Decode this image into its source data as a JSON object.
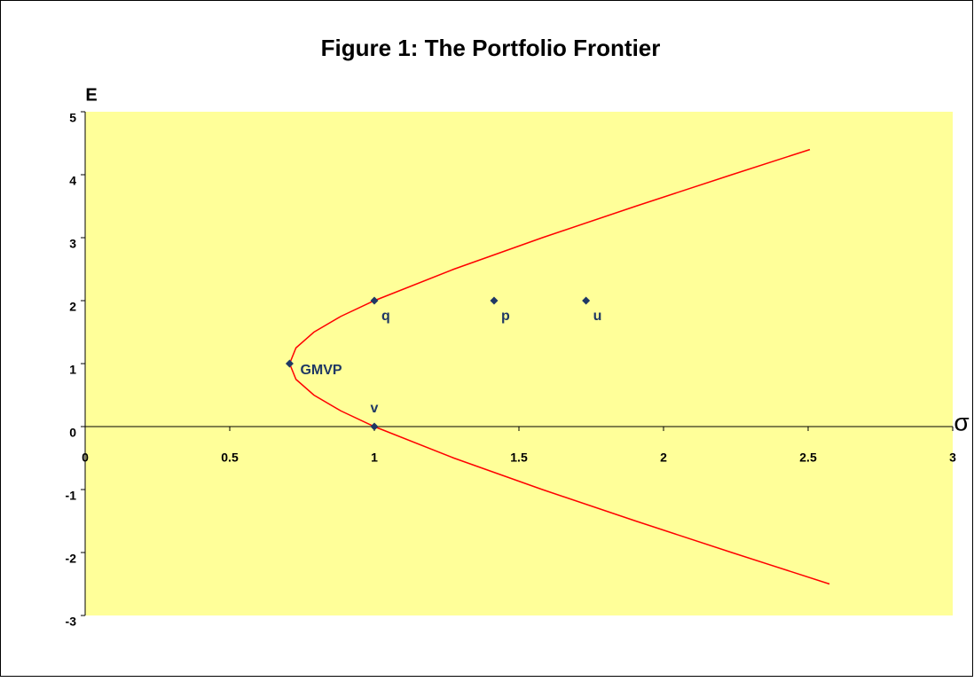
{
  "chart_data": {
    "type": "scatter",
    "title": "Figure 1:  The Portfolio Frontier",
    "y_label": "E",
    "x_label": "σ",
    "xlim": [
      0,
      3
    ],
    "ylim": [
      -3,
      5
    ],
    "xticks": [
      0,
      0.5,
      1,
      1.5,
      2,
      2.5,
      3
    ],
    "yticks": [
      -3,
      -2,
      -1,
      0,
      1,
      2,
      3,
      4,
      5
    ],
    "background": "#ffff99",
    "series": [
      {
        "type": "line",
        "color": "#ff0000",
        "x": [
          2.574,
          2.236,
          1.904,
          1.581,
          1.275,
          1.0,
          0.884,
          0.791,
          0.729,
          0.707,
          0.729,
          0.791,
          0.884,
          1.0,
          1.275,
          1.581,
          1.904,
          2.236,
          2.506
        ],
        "values": [
          -2.5,
          -2,
          -1.5,
          -1,
          -0.5,
          0,
          0.25,
          0.5,
          0.75,
          1,
          1.25,
          1.5,
          1.75,
          2,
          2.5,
          3,
          3.5,
          4,
          4.4
        ]
      },
      {
        "type": "scatter",
        "color": "#1f3864",
        "labels": [
          "GMVP",
          "q",
          "p",
          "u",
          "v"
        ],
        "x": [
          0.707,
          1,
          1.414,
          1.732,
          1
        ],
        "values": [
          1,
          2,
          2,
          2,
          0
        ]
      }
    ]
  }
}
